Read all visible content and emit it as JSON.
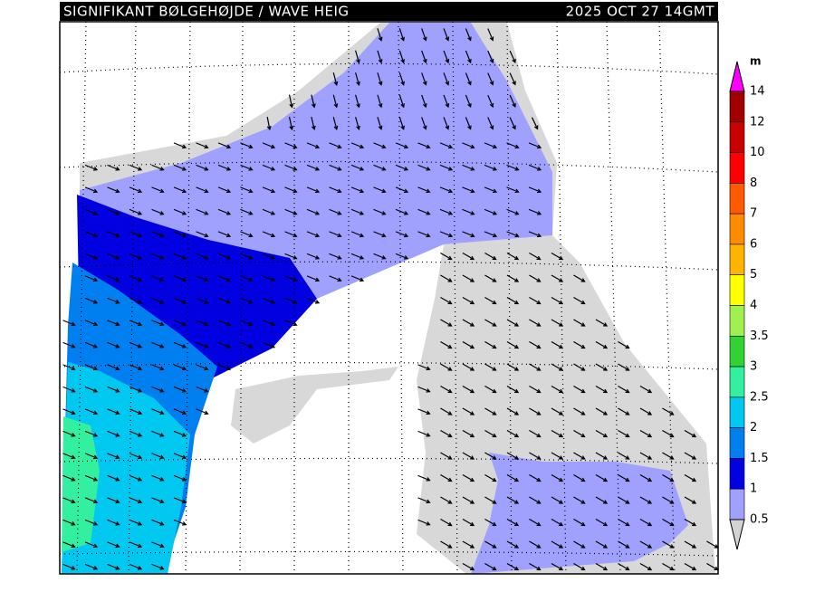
{
  "header": {
    "title": "SIGNIFIKANT BØLGEHØJDE / WAVE HEIG",
    "timestamp": "2025 OCT 27 14GMT"
  },
  "colorbar": {
    "unit": "m",
    "above_color": "#ff00ff",
    "below_color": "#d3d3d3",
    "levels": [
      {
        "label": "14",
        "color": "#a00000"
      },
      {
        "label": "12",
        "color": "#c80000"
      },
      {
        "label": "10",
        "color": "#ff0000"
      },
      {
        "label": "8",
        "color": "#ff5a00"
      },
      {
        "label": "7",
        "color": "#ff8c00"
      },
      {
        "label": "6",
        "color": "#ffb400"
      },
      {
        "label": "5",
        "color": "#ffff00"
      },
      {
        "label": "4",
        "color": "#a0f050"
      },
      {
        "label": "3.5",
        "color": "#32d232"
      },
      {
        "label": "3",
        "color": "#32f0a0"
      },
      {
        "label": "2.5",
        "color": "#00c8f0"
      },
      {
        "label": "2",
        "color": "#0080f0"
      },
      {
        "label": "1.5",
        "color": "#0000e0"
      },
      {
        "label": "1",
        "color": "#a0a0ff"
      },
      {
        "label": "0.5"
      }
    ]
  }
}
